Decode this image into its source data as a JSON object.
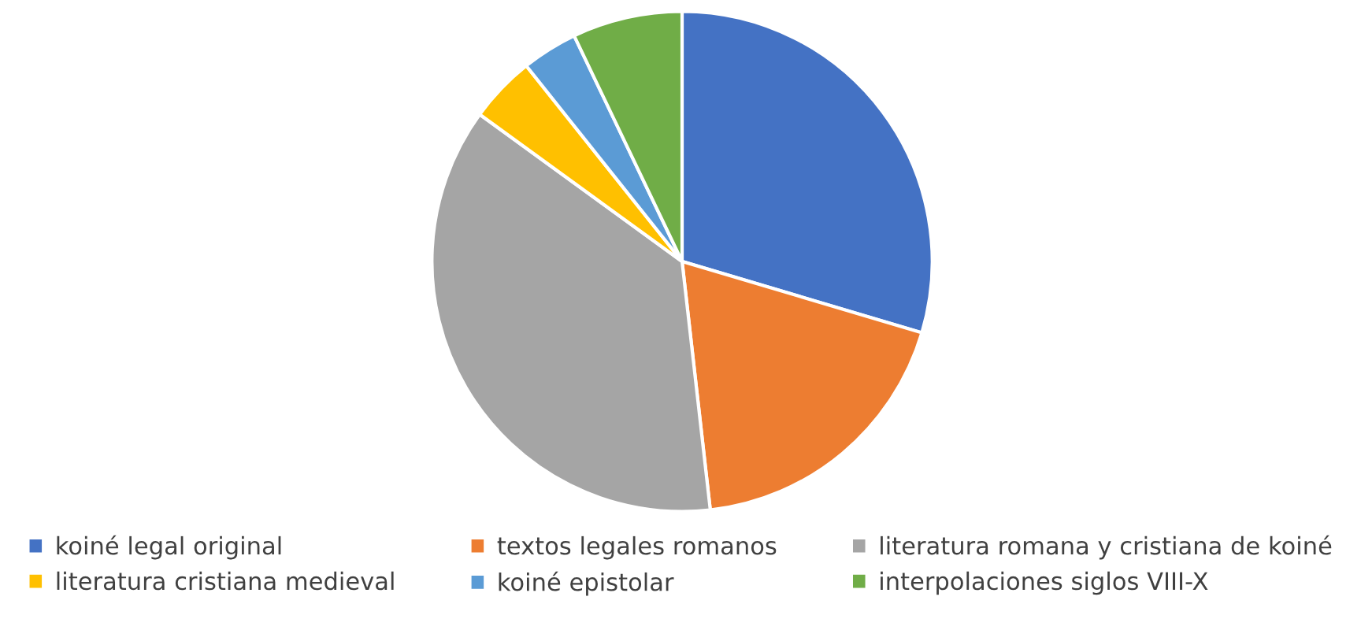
{
  "chart_data": {
    "type": "pie",
    "categories": [
      "koiné legal original",
      "textos legales romanos",
      "literatura romana y cristiana de koiné",
      "literatura cristiana medieval",
      "koiné epistolar",
      "interpolaciones siglos VIII-X"
    ],
    "values": [
      29.6,
      18.6,
      36.8,
      4.3,
      3.6,
      7.1
    ],
    "colors": [
      "#4472c4",
      "#ed7d31",
      "#a5a5a5",
      "#ffc000",
      "#5b9bd5",
      "#70ad47"
    ],
    "legend": "bottom"
  }
}
